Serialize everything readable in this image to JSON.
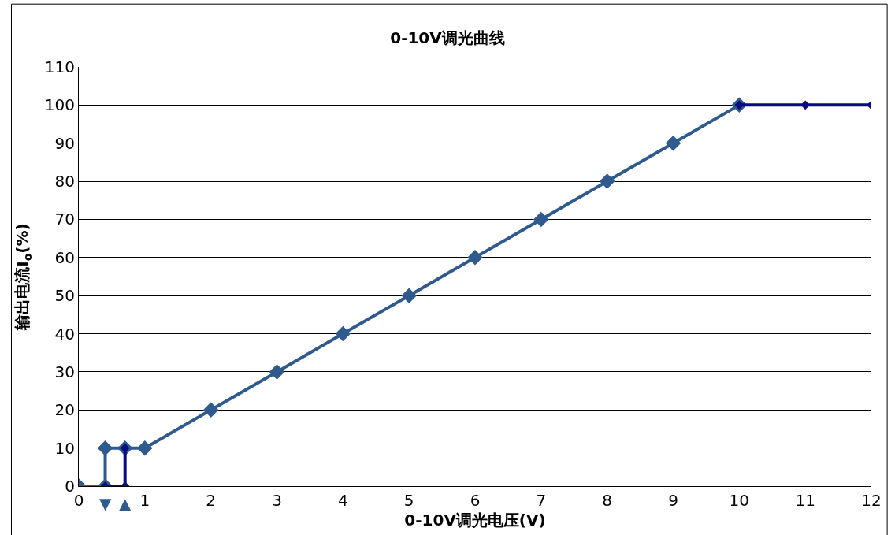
{
  "chart_data": {
    "type": "line",
    "title": "0-10V调光曲线",
    "xlabel": "0-10V调光电压(V)",
    "ylabel": "输出电流I$_{o}$(%)",
    "series": [
      {
        "color": "#2f5a8e",
        "x": [
          0,
          0.4,
          0.4,
          0.7,
          1,
          2,
          3,
          4,
          5,
          6,
          7,
          8,
          9,
          10
        ],
        "values": [
          0,
          0,
          10,
          10,
          10,
          20,
          30,
          40,
          50,
          60,
          70,
          80,
          90,
          100
        ]
      },
      {
        "color": "#0a0a80",
        "x": [
          0.4,
          0.7,
          0.7
        ],
        "values": [
          0,
          0,
          10
        ]
      },
      {
        "color": "#0a0a80",
        "x": [
          10,
          11,
          12
        ],
        "values": [
          100,
          100,
          100
        ]
      }
    ],
    "annotations": [
      {
        "text": "▼",
        "x": 0.4,
        "y": 0
      },
      {
        "text": "▲",
        "x": 0.7,
        "y": 0
      }
    ],
    "xlim": [
      0,
      12
    ],
    "xticks": [
      0,
      1,
      2,
      3,
      4,
      5,
      6,
      7,
      8,
      9,
      10,
      11,
      12
    ],
    "ylim": [
      0,
      110
    ],
    "yticks": [
      0,
      10,
      20,
      30,
      40,
      50,
      60,
      70,
      80,
      90,
      100,
      110
    ],
    "grid": "y",
    "marker": "diamond",
    "line_style": "solid"
  }
}
